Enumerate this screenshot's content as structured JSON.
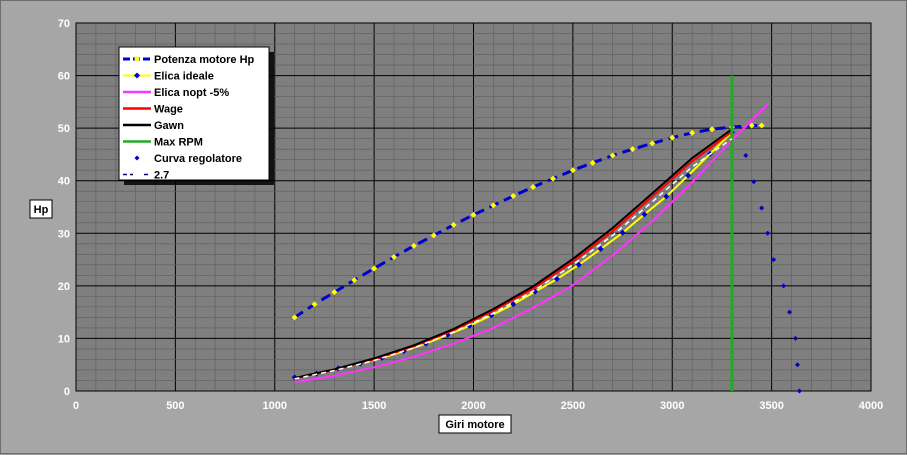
{
  "chart_data": {
    "type": "line",
    "title": "",
    "xlabel": "Giri motore",
    "ylabel": "Hp",
    "xlim": [
      0,
      4000
    ],
    "ylim": [
      0,
      70
    ],
    "xticks": [
      0,
      500,
      1000,
      1500,
      2000,
      2500,
      3000,
      3500,
      4000
    ],
    "yticks": [
      0,
      10,
      20,
      30,
      40,
      50,
      60,
      70
    ],
    "grid": true,
    "legend_position": "top-left",
    "colors": {
      "window_bg": "#a6a6a6",
      "plot_bg": "#7f7f7f",
      "grid": "#000000",
      "tick_text": "#ffffff"
    },
    "series": [
      {
        "name": "Potenza motore Hp",
        "color": "#0000cc",
        "marker_color": "#ffff00",
        "style": "dashed-diamond",
        "x": [
          1100,
          1200,
          1300,
          1400,
          1500,
          1600,
          1700,
          1800,
          1900,
          2000,
          2100,
          2200,
          2300,
          2400,
          2500,
          2600,
          2700,
          2800,
          2900,
          3000,
          3100,
          3200,
          3300,
          3400,
          3450
        ],
        "y": [
          14,
          16.5,
          18.8,
          21.1,
          23.3,
          25.5,
          27.6,
          29.6,
          31.6,
          33.5,
          35.3,
          37.1,
          38.8,
          40.4,
          42,
          43.4,
          44.8,
          46,
          47.1,
          48.2,
          49.1,
          49.8,
          50.2,
          50.5,
          50.5
        ]
      },
      {
        "name": "Elica ideale",
        "color": "#ffff00",
        "marker_color": "#0000cc",
        "style": "diamond-line",
        "x": [
          1100,
          1210,
          1320,
          1430,
          1540,
          1650,
          1760,
          1870,
          1980,
          2090,
          2200,
          2310,
          2420,
          2530,
          2640,
          2750,
          2860,
          2970,
          3080,
          3190,
          3300
        ],
        "y": [
          2.6,
          3.3,
          4.3,
          5.2,
          6.3,
          7.6,
          9.0,
          10.7,
          12.4,
          14.4,
          16.5,
          18.9,
          21.3,
          24.0,
          27.0,
          30.1,
          33.6,
          37.0,
          41.0,
          45.1,
          49.2
        ]
      },
      {
        "name": "Elica nopt -5%",
        "color": "#ff33ff",
        "style": "line",
        "x": [
          1100,
          1300,
          1500,
          1700,
          1900,
          2100,
          2300,
          2500,
          2700,
          2900,
          3100,
          3300,
          3480
        ],
        "y": [
          1.7,
          2.9,
          4.5,
          6.5,
          9.0,
          12.0,
          15.8,
          20.1,
          25.8,
          32.3,
          39.7,
          47.7,
          54.5
        ]
      },
      {
        "name": "Wage",
        "color": "#ff0000",
        "style": "line",
        "x": [
          1100,
          1300,
          1500,
          1700,
          1900,
          2100,
          2300,
          2500,
          2700,
          2900,
          3100,
          3300
        ],
        "y": [
          2.4,
          4.0,
          6.0,
          8.5,
          11.5,
          15.3,
          19.5,
          24.6,
          30.4,
          37.0,
          43.7,
          49.3
        ]
      },
      {
        "name": "Gawn",
        "color": "#000000",
        "style": "line",
        "x": [
          1100,
          1300,
          1500,
          1700,
          1900,
          2100,
          2300,
          2500,
          2700,
          2900,
          3100,
          3300
        ],
        "y": [
          2.5,
          4.1,
          6.2,
          8.7,
          11.8,
          15.6,
          19.9,
          25.1,
          31.0,
          37.6,
          44.3,
          49.8
        ]
      },
      {
        "name": "Max RPM",
        "color": "#22aa22",
        "style": "vertical-line",
        "x": [
          3300,
          3300
        ],
        "y": [
          0,
          60
        ]
      },
      {
        "name": "Curva regolatore",
        "color": "#0000cc",
        "style": "points",
        "x": [
          3370,
          3410,
          3450,
          3480,
          3510,
          3560,
          3590,
          3620,
          3630,
          3640
        ],
        "y": [
          44.8,
          39.8,
          34.8,
          30,
          25,
          20,
          15,
          10,
          5,
          0
        ]
      },
      {
        "name": "2.7",
        "color": "#ffffff",
        "marker_color": "#000080",
        "style": "dash-line",
        "x": [
          1100,
          1300,
          1500,
          1700,
          1900,
          2100,
          2300,
          2500,
          2700,
          2900,
          3100,
          3300
        ],
        "y": [
          2.3,
          3.9,
          5.8,
          8.2,
          11.2,
          14.8,
          19.0,
          24.0,
          29.6,
          36.0,
          42.6,
          48.0
        ]
      }
    ]
  }
}
